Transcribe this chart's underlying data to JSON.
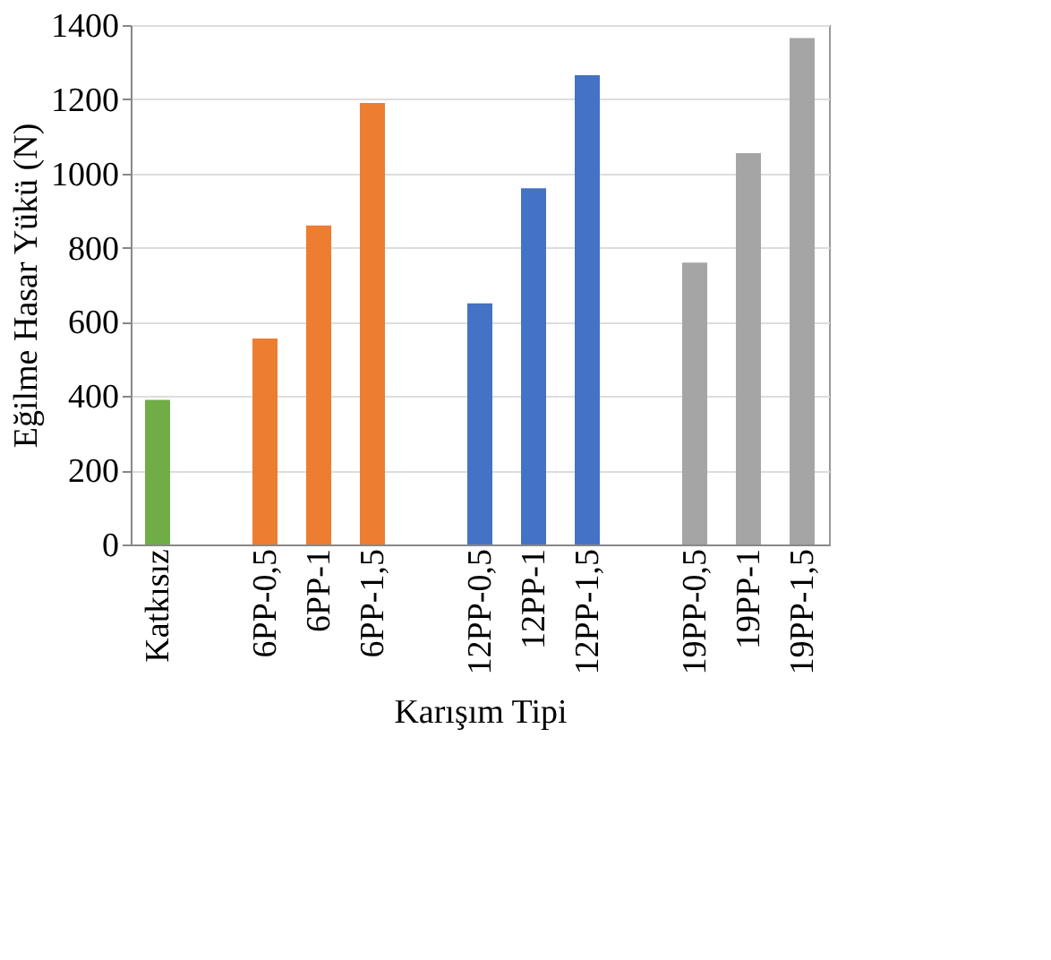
{
  "chart_data": {
    "type": "bar",
    "xlabel": "Karışım Tipi",
    "ylabel": "Eğilme Hasar Yükü (N)",
    "categories": [
      "Katkısız",
      null,
      "6PP-0,5",
      "6PP-1",
      "6PP-1,5",
      null,
      "12PP-0,5",
      "12PP-1",
      "12PP-1,5",
      null,
      "19PP-0,5",
      "19PP-1",
      "19PP-1,5"
    ],
    "values": [
      390,
      null,
      555,
      860,
      1190,
      null,
      650,
      960,
      1265,
      null,
      760,
      1055,
      1365
    ],
    "colors": [
      "#70ad47",
      null,
      "#ed7d31",
      "#ed7d31",
      "#ed7d31",
      null,
      "#4472c4",
      "#4472c4",
      "#4472c4",
      null,
      "#a5a5a5",
      "#a5a5a5",
      "#a5a5a5"
    ],
    "ylim": [
      0,
      1400
    ],
    "yticks": [
      0,
      200,
      400,
      600,
      800,
      1000,
      1200,
      1400
    ],
    "grid": "y"
  }
}
